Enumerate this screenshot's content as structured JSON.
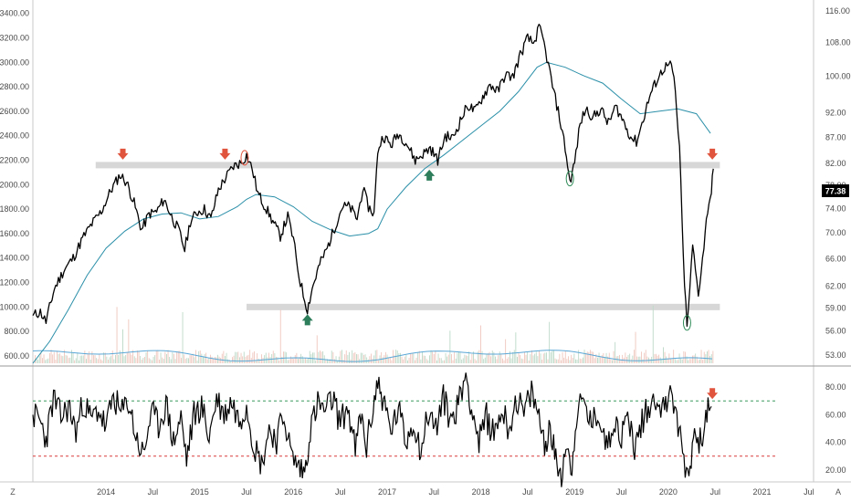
{
  "chart_data": [
    {
      "type": "line",
      "panel": "price",
      "title": "",
      "left_axis": {
        "ticks": [
          "600.00",
          "800.00",
          "1000.00",
          "1200.00",
          "1400.00",
          "1600.00",
          "1800.00",
          "2000.00",
          "2200.00",
          "2400.00",
          "2600.00",
          "2800.00",
          "3000.00",
          "3200.00",
          "3400.00"
        ],
        "range": [
          540,
          3480
        ]
      },
      "right_axis": {
        "scale": "log",
        "ticks": [
          "53.00",
          "56.00",
          "59.00",
          "62.00",
          "66.00",
          "70.00",
          "74.00",
          "78.00",
          "82.00",
          "87.00",
          "92.00",
          "100.00",
          "108.00",
          "116.00"
        ],
        "range": [
          52,
          118
        ]
      },
      "x_axis": {
        "ticks": [
          "2014",
          "Jul",
          "2015",
          "Jul",
          "2016",
          "Jul",
          "2017",
          "Jul",
          "2018",
          "Jul",
          "2019",
          "Jul",
          "2020",
          "Jul",
          "2021",
          "Jul"
        ],
        "tick_dates": [
          2014.0,
          2014.5,
          2015.0,
          2015.5,
          2016.0,
          2016.5,
          2017.0,
          2017.5,
          2018.0,
          2018.5,
          2019.0,
          2019.5,
          2020.0,
          2020.5,
          2021.0,
          2021.5
        ],
        "range": [
          2013.22,
          2021.55
        ]
      },
      "last_value_label": "77.38",
      "price_path": [
        [
          2013.22,
          930
        ],
        [
          2013.3,
          960
        ],
        [
          2013.36,
          880
        ],
        [
          2013.45,
          1150
        ],
        [
          2013.55,
          1300
        ],
        [
          2013.65,
          1400
        ],
        [
          2013.75,
          1560
        ],
        [
          2013.85,
          1680
        ],
        [
          2013.95,
          1780
        ],
        [
          2014.05,
          1950
        ],
        [
          2014.15,
          2080
        ],
        [
          2014.22,
          2020
        ],
        [
          2014.3,
          1850
        ],
        [
          2014.38,
          1630
        ],
        [
          2014.46,
          1760
        ],
        [
          2014.54,
          1780
        ],
        [
          2014.62,
          1880
        ],
        [
          2014.7,
          1740
        ],
        [
          2014.78,
          1620
        ],
        [
          2014.84,
          1470
        ],
        [
          2014.9,
          1700
        ],
        [
          2014.98,
          1780
        ],
        [
          2015.05,
          1800
        ],
        [
          2015.12,
          1720
        ],
        [
          2015.2,
          1960
        ],
        [
          2015.28,
          2060
        ],
        [
          2015.36,
          2150
        ],
        [
          2015.44,
          2180
        ],
        [
          2015.5,
          2240
        ],
        [
          2015.56,
          2130
        ],
        [
          2015.62,
          1930
        ],
        [
          2015.7,
          1820
        ],
        [
          2015.78,
          1700
        ],
        [
          2015.86,
          1580
        ],
        [
          2015.94,
          1740
        ],
        [
          2016.0,
          1550
        ],
        [
          2016.06,
          1250
        ],
        [
          2016.12,
          1060
        ],
        [
          2016.15,
          980
        ],
        [
          2016.2,
          1150
        ],
        [
          2016.28,
          1350
        ],
        [
          2016.36,
          1480
        ],
        [
          2016.44,
          1650
        ],
        [
          2016.52,
          1820
        ],
        [
          2016.6,
          1820
        ],
        [
          2016.68,
          1720
        ],
        [
          2016.74,
          1970
        ],
        [
          2016.8,
          1820
        ],
        [
          2016.86,
          1760
        ],
        [
          2016.9,
          2280
        ],
        [
          2016.96,
          2400
        ],
        [
          2017.04,
          2320
        ],
        [
          2017.12,
          2420
        ],
        [
          2017.2,
          2350
        ],
        [
          2017.3,
          2200
        ],
        [
          2017.38,
          2250
        ],
        [
          2017.46,
          2300
        ],
        [
          2017.54,
          2200
        ],
        [
          2017.62,
          2400
        ],
        [
          2017.7,
          2380
        ],
        [
          2017.78,
          2520
        ],
        [
          2017.86,
          2650
        ],
        [
          2017.94,
          2600
        ],
        [
          2018.02,
          2720
        ],
        [
          2018.1,
          2820
        ],
        [
          2018.18,
          2760
        ],
        [
          2018.26,
          2900
        ],
        [
          2018.34,
          2880
        ],
        [
          2018.42,
          3060
        ],
        [
          2018.5,
          3200
        ],
        [
          2018.56,
          3150
        ],
        [
          2018.62,
          3280
        ],
        [
          2018.66,
          3200
        ],
        [
          2018.72,
          2980
        ],
        [
          2018.78,
          2750
        ],
        [
          2018.84,
          2550
        ],
        [
          2018.9,
          2300
        ],
        [
          2018.95,
          2020
        ],
        [
          2019.0,
          2180
        ],
        [
          2019.06,
          2500
        ],
        [
          2019.12,
          2620
        ],
        [
          2019.2,
          2550
        ],
        [
          2019.28,
          2620
        ],
        [
          2019.36,
          2500
        ],
        [
          2019.44,
          2640
        ],
        [
          2019.52,
          2520
        ],
        [
          2019.6,
          2390
        ],
        [
          2019.66,
          2350
        ],
        [
          2019.72,
          2500
        ],
        [
          2019.8,
          2720
        ],
        [
          2019.88,
          2860
        ],
        [
          2019.96,
          2960
        ],
        [
          2020.02,
          2980
        ],
        [
          2020.06,
          2880
        ],
        [
          2020.12,
          2300
        ],
        [
          2020.16,
          1400
        ],
        [
          2020.2,
          820
        ],
        [
          2020.26,
          1500
        ],
        [
          2020.32,
          1100
        ],
        [
          2020.38,
          1500
        ],
        [
          2020.42,
          1800
        ],
        [
          2020.46,
          1950
        ],
        [
          2020.48,
          2130
        ]
      ],
      "moving_average_path": [
        [
          2013.22,
          540
        ],
        [
          2013.4,
          720
        ],
        [
          2013.6,
          980
        ],
        [
          2013.8,
          1260
        ],
        [
          2014.0,
          1480
        ],
        [
          2014.2,
          1620
        ],
        [
          2014.4,
          1720
        ],
        [
          2014.6,
          1760
        ],
        [
          2014.8,
          1770
        ],
        [
          2015.0,
          1720
        ],
        [
          2015.2,
          1740
        ],
        [
          2015.4,
          1820
        ],
        [
          2015.5,
          1880
        ],
        [
          2015.6,
          1920
        ],
        [
          2015.8,
          1900
        ],
        [
          2016.0,
          1820
        ],
        [
          2016.2,
          1700
        ],
        [
          2016.4,
          1630
        ],
        [
          2016.6,
          1580
        ],
        [
          2016.8,
          1600
        ],
        [
          2016.9,
          1640
        ],
        [
          2017.0,
          1800
        ],
        [
          2017.2,
          1980
        ],
        [
          2017.4,
          2130
        ],
        [
          2017.6,
          2240
        ],
        [
          2017.8,
          2360
        ],
        [
          2018.0,
          2480
        ],
        [
          2018.2,
          2600
        ],
        [
          2018.4,
          2760
        ],
        [
          2018.6,
          2960
        ],
        [
          2018.7,
          3000
        ],
        [
          2018.9,
          2960
        ],
        [
          2019.1,
          2890
        ],
        [
          2019.3,
          2830
        ],
        [
          2019.5,
          2700
        ],
        [
          2019.7,
          2580
        ],
        [
          2019.9,
          2600
        ],
        [
          2020.1,
          2620
        ],
        [
          2020.3,
          2580
        ],
        [
          2020.45,
          2420
        ]
      ],
      "horizontal_zones": [
        {
          "from_date": 2013.89,
          "to_date": 2020.55,
          "value": 2160
        },
        {
          "from_date": 2015.5,
          "to_date": 2020.55,
          "value": 1000
        }
      ],
      "down_arrows": [
        2014.18,
        2015.27,
        2020.47
      ],
      "up_arrows": [
        2016.15,
        2017.45
      ],
      "circled_points": [
        {
          "date": 2015.48,
          "value": 2220
        },
        {
          "date": 2018.95,
          "value": 2050
        },
        {
          "date": 2020.2,
          "value": 870
        }
      ]
    },
    {
      "type": "line",
      "panel": "oscillator",
      "title": "",
      "right_axis": {
        "ticks": [
          "20.00",
          "40.00",
          "60.00",
          "80.00"
        ],
        "range": [
          14,
          92
        ]
      },
      "upper_band": 70,
      "lower_band": 30,
      "down_arrows": [
        2020.47
      ],
      "oscillator_path": [
        [
          2013.22,
          60
        ],
        [
          2013.3,
          55
        ],
        [
          2013.36,
          42
        ],
        [
          2013.44,
          72
        ],
        [
          2013.52,
          58
        ],
        [
          2013.6,
          66
        ],
        [
          2013.68,
          48
        ],
        [
          2013.76,
          70
        ],
        [
          2013.84,
          56
        ],
        [
          2013.92,
          64
        ],
        [
          2014.0,
          50
        ],
        [
          2014.08,
          74
        ],
        [
          2014.16,
          60
        ],
        [
          2014.24,
          70
        ],
        [
          2014.32,
          44
        ],
        [
          2014.4,
          30
        ],
        [
          2014.48,
          62
        ],
        [
          2014.56,
          52
        ],
        [
          2014.64,
          68
        ],
        [
          2014.72,
          40
        ],
        [
          2014.8,
          58
        ],
        [
          2014.86,
          28
        ],
        [
          2014.94,
          60
        ],
        [
          2015.02,
          66
        ],
        [
          2015.1,
          44
        ],
        [
          2015.18,
          72
        ],
        [
          2015.26,
          60
        ],
        [
          2015.34,
          70
        ],
        [
          2015.42,
          56
        ],
        [
          2015.5,
          68
        ],
        [
          2015.58,
          38
        ],
        [
          2015.66,
          24
        ],
        [
          2015.74,
          50
        ],
        [
          2015.82,
          42
        ],
        [
          2015.9,
          60
        ],
        [
          2015.98,
          30
        ],
        [
          2016.06,
          22
        ],
        [
          2016.12,
          18
        ],
        [
          2016.18,
          50
        ],
        [
          2016.26,
          68
        ],
        [
          2016.34,
          62
        ],
        [
          2016.42,
          72
        ],
        [
          2016.5,
          54
        ],
        [
          2016.58,
          66
        ],
        [
          2016.66,
          34
        ],
        [
          2016.72,
          60
        ],
        [
          2016.78,
          36
        ],
        [
          2016.84,
          62
        ],
        [
          2016.9,
          84
        ],
        [
          2016.96,
          70
        ],
        [
          2017.04,
          48
        ],
        [
          2017.12,
          64
        ],
        [
          2017.2,
          40
        ],
        [
          2017.28,
          56
        ],
        [
          2017.36,
          34
        ],
        [
          2017.44,
          62
        ],
        [
          2017.52,
          50
        ],
        [
          2017.6,
          72
        ],
        [
          2017.68,
          56
        ],
        [
          2017.76,
          68
        ],
        [
          2017.84,
          90
        ],
        [
          2017.9,
          66
        ],
        [
          2017.98,
          40
        ],
        [
          2018.06,
          58
        ],
        [
          2018.14,
          46
        ],
        [
          2018.22,
          64
        ],
        [
          2018.3,
          50
        ],
        [
          2018.38,
          72
        ],
        [
          2018.46,
          60
        ],
        [
          2018.54,
          76
        ],
        [
          2018.62,
          58
        ],
        [
          2018.68,
          40
        ],
        [
          2018.74,
          50
        ],
        [
          2018.8,
          26
        ],
        [
          2018.86,
          18
        ],
        [
          2018.92,
          42
        ],
        [
          2018.96,
          16
        ],
        [
          2019.02,
          60
        ],
        [
          2019.1,
          70
        ],
        [
          2019.18,
          52
        ],
        [
          2019.26,
          62
        ],
        [
          2019.34,
          36
        ],
        [
          2019.42,
          58
        ],
        [
          2019.5,
          44
        ],
        [
          2019.58,
          60
        ],
        [
          2019.64,
          34
        ],
        [
          2019.72,
          56
        ],
        [
          2019.8,
          66
        ],
        [
          2019.88,
          74
        ],
        [
          2019.96,
          62
        ],
        [
          2020.02,
          84
        ],
        [
          2020.08,
          58
        ],
        [
          2020.14,
          40
        ],
        [
          2020.18,
          22
        ],
        [
          2020.22,
          18
        ],
        [
          2020.28,
          48
        ],
        [
          2020.34,
          40
        ],
        [
          2020.4,
          60
        ],
        [
          2020.46,
          66
        ]
      ]
    }
  ],
  "ui": {
    "bottom_left_button": "Z",
    "bottom_right_button": "A"
  },
  "colors": {
    "price_line": "#000000",
    "moving_average": "#2a8fa8",
    "zone": "#d7d7d7",
    "down_arrow": "#e0533d",
    "up_arrow": "#2e7d5b",
    "circle": "#2e8b57",
    "upper_band": "#3a9a5e",
    "lower_band": "#d93a3a",
    "axis_text": "#4a4a4a",
    "badge": "#000000"
  }
}
